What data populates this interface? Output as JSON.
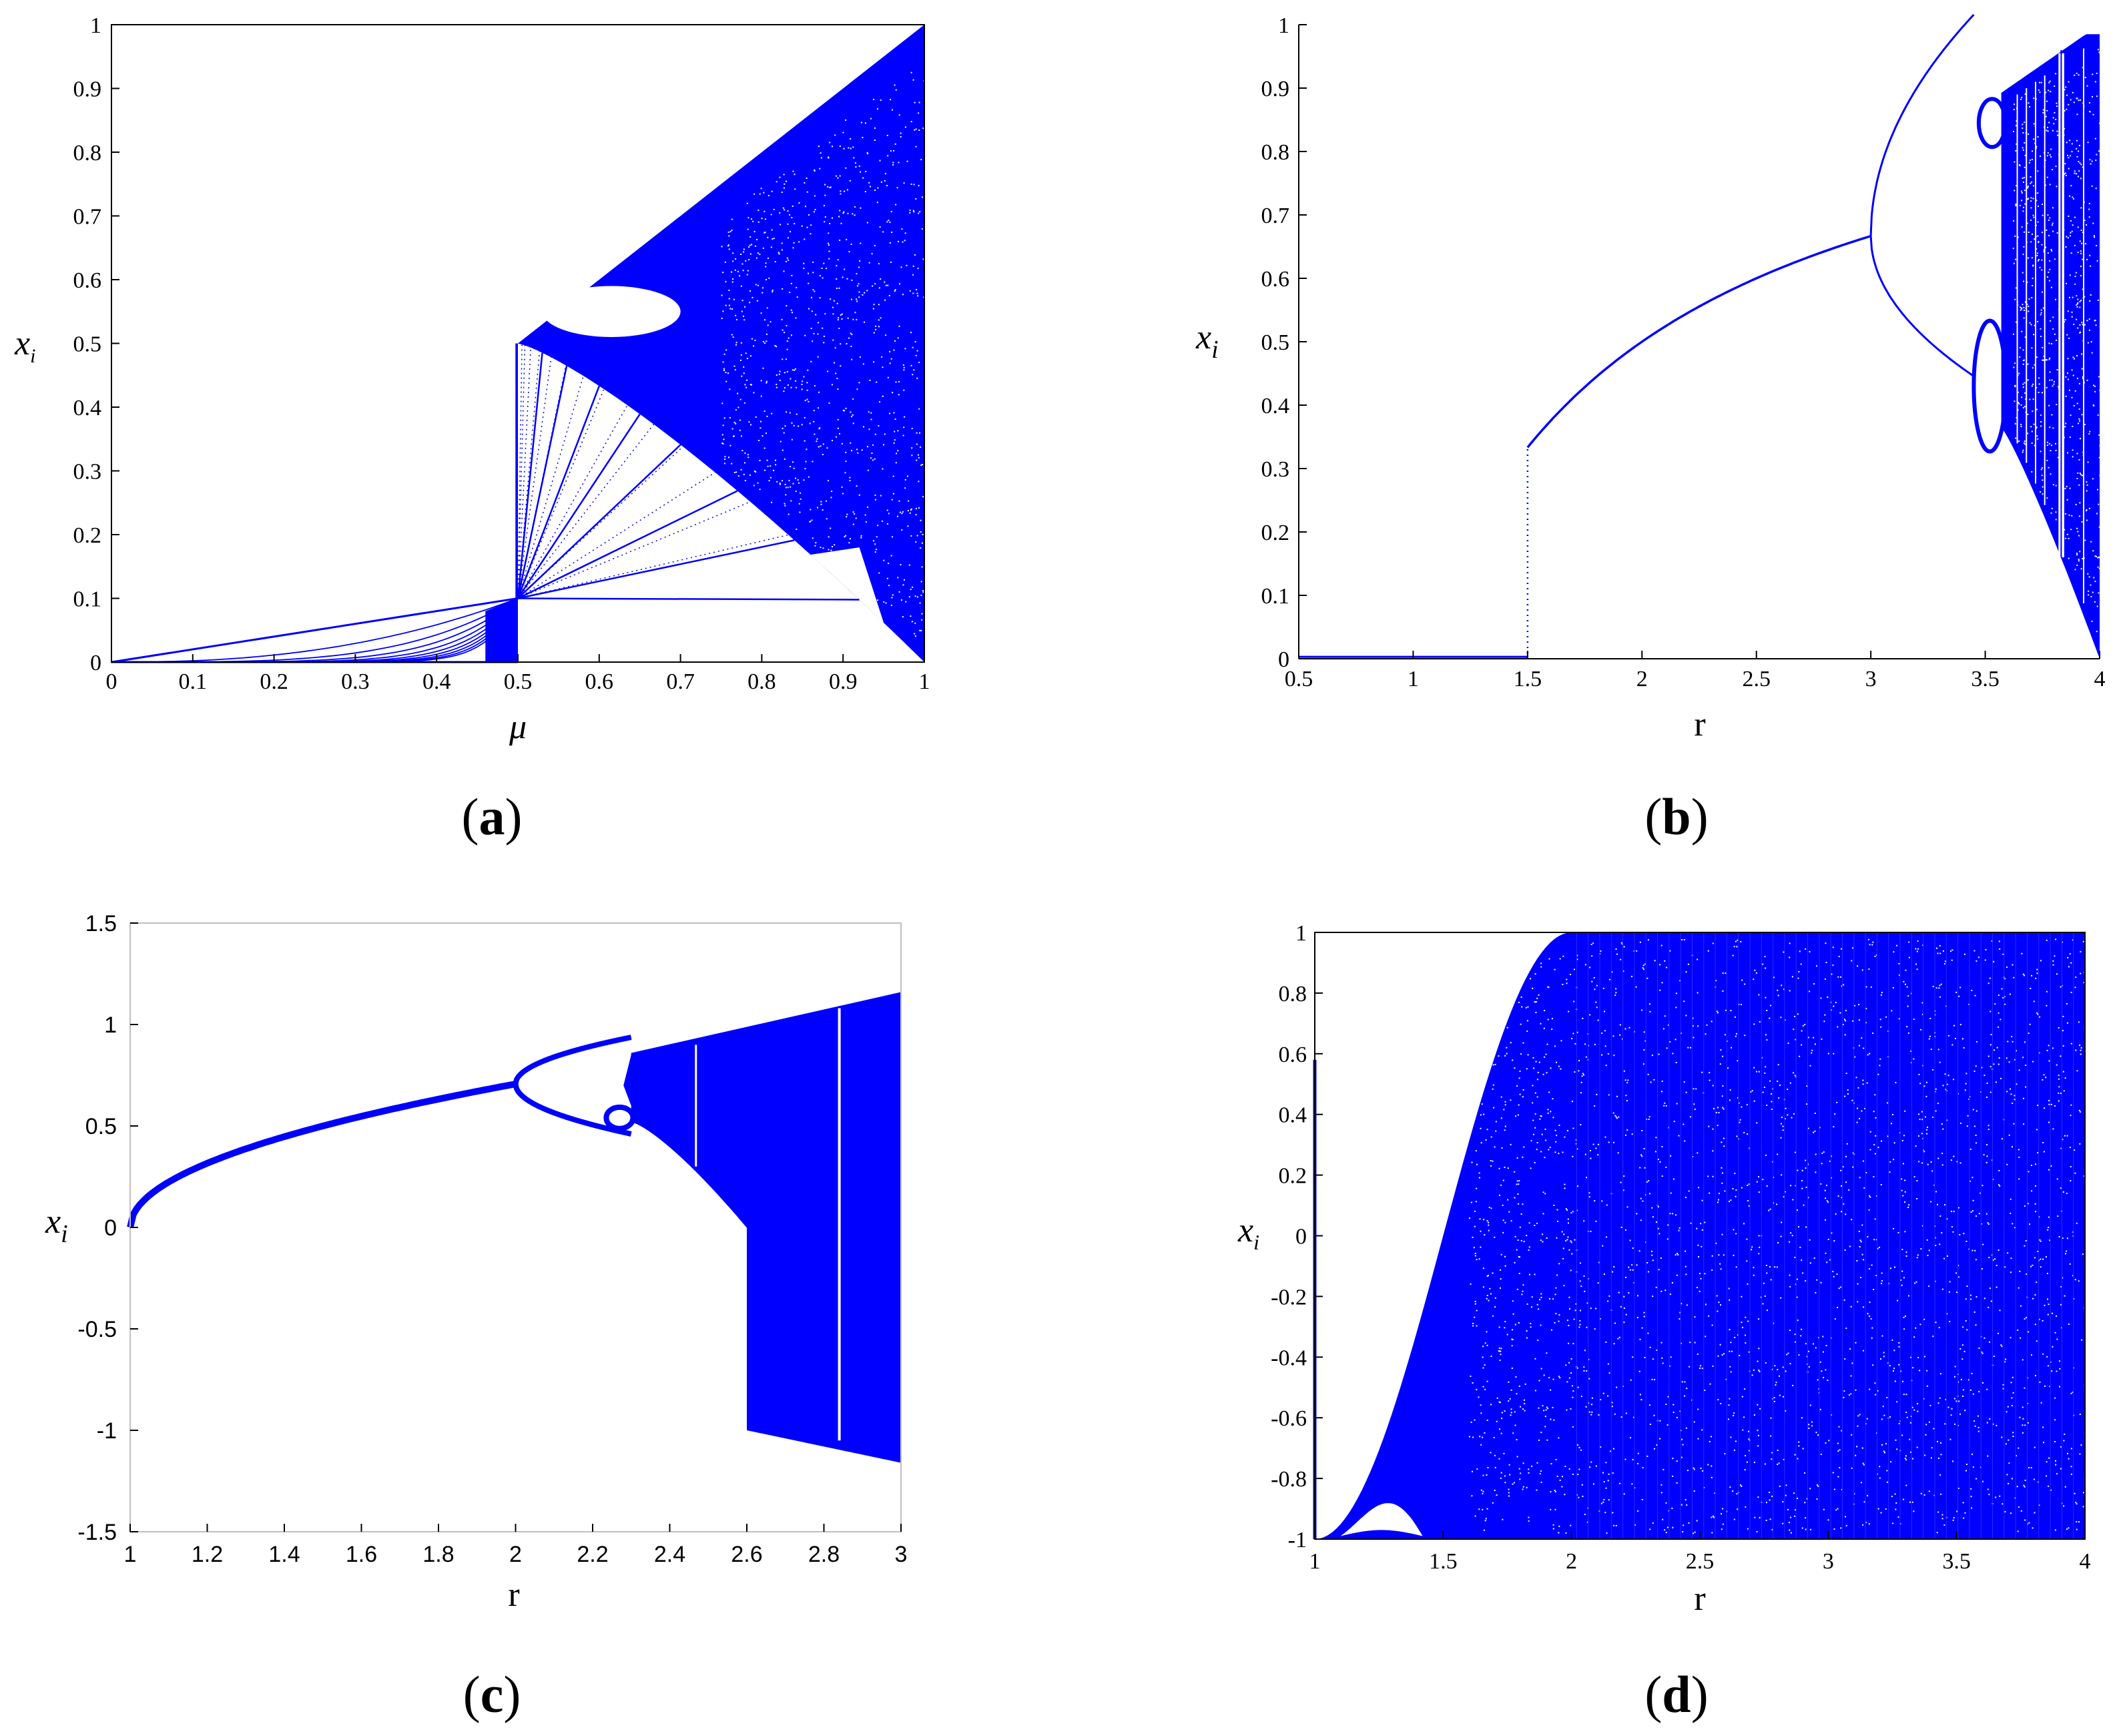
{
  "figure": {
    "background": "#ffffff",
    "data_color": "#0000ff"
  },
  "chart_data": [
    {
      "id": "a",
      "type": "scatter",
      "panel_label": "a",
      "xlabel": "μ",
      "ylabel": "x",
      "ylabel_sub": "i",
      "xlim": [
        0,
        1
      ],
      "ylim": [
        0,
        1
      ],
      "xticks": [
        "0",
        "0.1",
        "0.2",
        "0.3",
        "0.4",
        "0.5",
        "0.6",
        "0.7",
        "0.8",
        "0.9",
        "1"
      ],
      "yticks": [
        "0",
        "0.1",
        "0.2",
        "0.3",
        "0.4",
        "0.5",
        "0.6",
        "0.7",
        "0.8",
        "0.9",
        "1"
      ],
      "grid": false,
      "map": "tent-like piecewise map bifurcation: regular fixed branches for μ < 0.5, chaotic band between 1 - μ and 2μ - 0.5 for μ ≥ 0.5",
      "features": {
        "left_branch_tip": [
          0.5,
          0.1
        ],
        "jump_top": [
          0.5,
          0.5
        ],
        "upper_boundary": [
          [
            0.5,
            0.5
          ],
          [
            1.0,
            1.0
          ]
        ],
        "lower_boundary": [
          [
            0.5,
            0.5
          ],
          [
            0.75,
            0.37
          ],
          [
            0.9,
            0.18
          ],
          [
            1.0,
            0.0
          ]
        ],
        "periodic_window": {
          "x": [
            0.53,
            0.7
          ],
          "y": [
            0.51,
            0.59
          ]
        }
      }
    },
    {
      "id": "b",
      "type": "scatter",
      "panel_label": "b",
      "xlabel": "r",
      "ylabel": "x",
      "ylabel_sub": "i",
      "xlim": [
        0.5,
        4
      ],
      "ylim": [
        0,
        1
      ],
      "xticks": [
        "0.5",
        "1",
        "1.5",
        "2",
        "2.5",
        "3",
        "3.5",
        "4"
      ],
      "yticks": [
        "0",
        "0.1",
        "0.2",
        "0.3",
        "0.4",
        "0.5",
        "0.6",
        "0.7",
        "0.8",
        "0.9",
        "1"
      ],
      "grid": false,
      "map": "logistic-type map: zero branch for r < 1.5, stable branch from (1.5, 0.333) to (3, 0.667), period doubling at r = 3 and r ≈ 3.45, chaos beyond r ≈ 3.57",
      "features": {
        "zero_branch": [
          [
            0.5,
            0
          ],
          [
            1.5,
            0
          ]
        ],
        "jump": [
          1.5,
          0.333
        ],
        "first_bifurcation": [
          3.0,
          0.667
        ],
        "second_bifurcation_upper": [
          3.45,
          0.85
        ],
        "second_bifurcation_lower": [
          3.45,
          0.44
        ],
        "window": [
          3.83,
          0.16,
          0.96
        ]
      }
    },
    {
      "id": "c",
      "type": "scatter",
      "panel_label": "c",
      "xlabel": "r",
      "ylabel": "x",
      "ylabel_sub": "i",
      "xlim": [
        1,
        3
      ],
      "ylim": [
        -1.5,
        1.5
      ],
      "xticks": [
        "1",
        "1.2",
        "1.4",
        "1.6",
        "1.8",
        "2",
        "2.2",
        "2.4",
        "2.6",
        "2.8",
        "3"
      ],
      "yticks": [
        "-1.5",
        "-1",
        "-0.5",
        "0",
        "0.5",
        "1",
        "1.5"
      ],
      "grid": false,
      "map": "bifurcation with branch from (1, 0) to (2, 0.707), period doubling at r = 2, chaos from r ≈ 2.3, extension to negative values from r = 2.6",
      "features": {
        "branch_start": [
          1.0,
          0.0
        ],
        "first_bifurcation": [
          2.0,
          0.707
        ],
        "period4": [
          2.23,
          0.85,
          0.52
        ],
        "negative_jump": [
          2.6,
          -1.0
        ],
        "end_band": [
          3.0,
          -1.16,
          1.16
        ],
        "window": [
          2.84,
          -1.05,
          1.08
        ]
      }
    },
    {
      "id": "d",
      "type": "scatter",
      "panel_label": "d",
      "xlabel": "r",
      "ylabel": "x",
      "ylabel_sub": "i",
      "xlim": [
        1,
        4
      ],
      "ylim": [
        -1,
        1
      ],
      "xticks": [
        "1",
        "1.5",
        "2",
        "2.5",
        "3",
        "3.5",
        "4"
      ],
      "yticks": [
        "-1",
        "-0.8",
        "-0.6",
        "-0.4",
        "-0.2",
        "0",
        "0.2",
        "0.4",
        "0.6",
        "0.8",
        "1"
      ],
      "grid": false,
      "map": "chaotic map on [-1, 1]: upper edge rises from -1 at r = 1 to 1 at r = 2, full band for r ≥ 2, small periodic window near r ≈ 1.1–1.4",
      "features": {
        "upper_edge": [
          [
            1.0,
            -1.0
          ],
          [
            1.5,
            0.0
          ],
          [
            2.0,
            1.0
          ]
        ],
        "window": {
          "x": [
            1.1,
            1.42
          ],
          "y": [
            -0.99,
            -0.84
          ]
        },
        "left_spike": [
          1.0,
          -1.0,
          0.58
        ]
      }
    }
  ]
}
